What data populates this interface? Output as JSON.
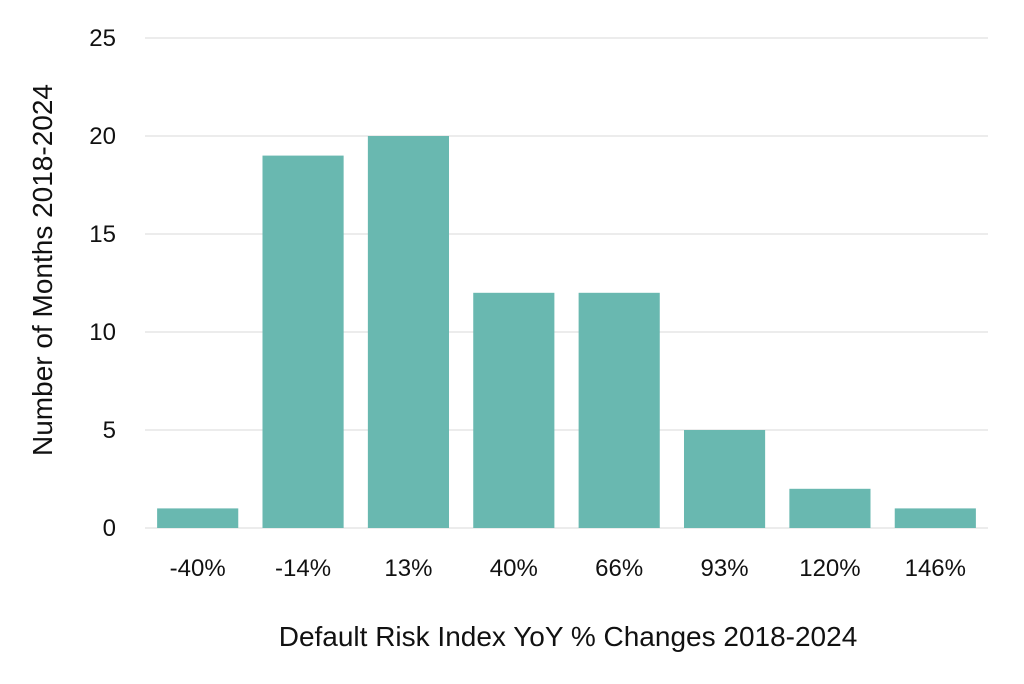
{
  "chart_data": {
    "type": "bar",
    "categories": [
      "-40%",
      "-14%",
      "13%",
      "40%",
      "66%",
      "93%",
      "120%",
      "146%"
    ],
    "values": [
      1,
      19,
      20,
      12,
      12,
      5,
      2,
      1
    ],
    "xlabel": "Default Risk Index YoY % Changes 2018-2024",
    "ylabel": "Number of Months 2018-2024",
    "ylim": [
      0,
      25
    ],
    "yticks": [
      0,
      5,
      10,
      15,
      20,
      25
    ],
    "grid": true,
    "legend": "none",
    "colors": {
      "bar": "#69b8b0",
      "grid": "#d9d9d9",
      "text": "#111111"
    }
  }
}
